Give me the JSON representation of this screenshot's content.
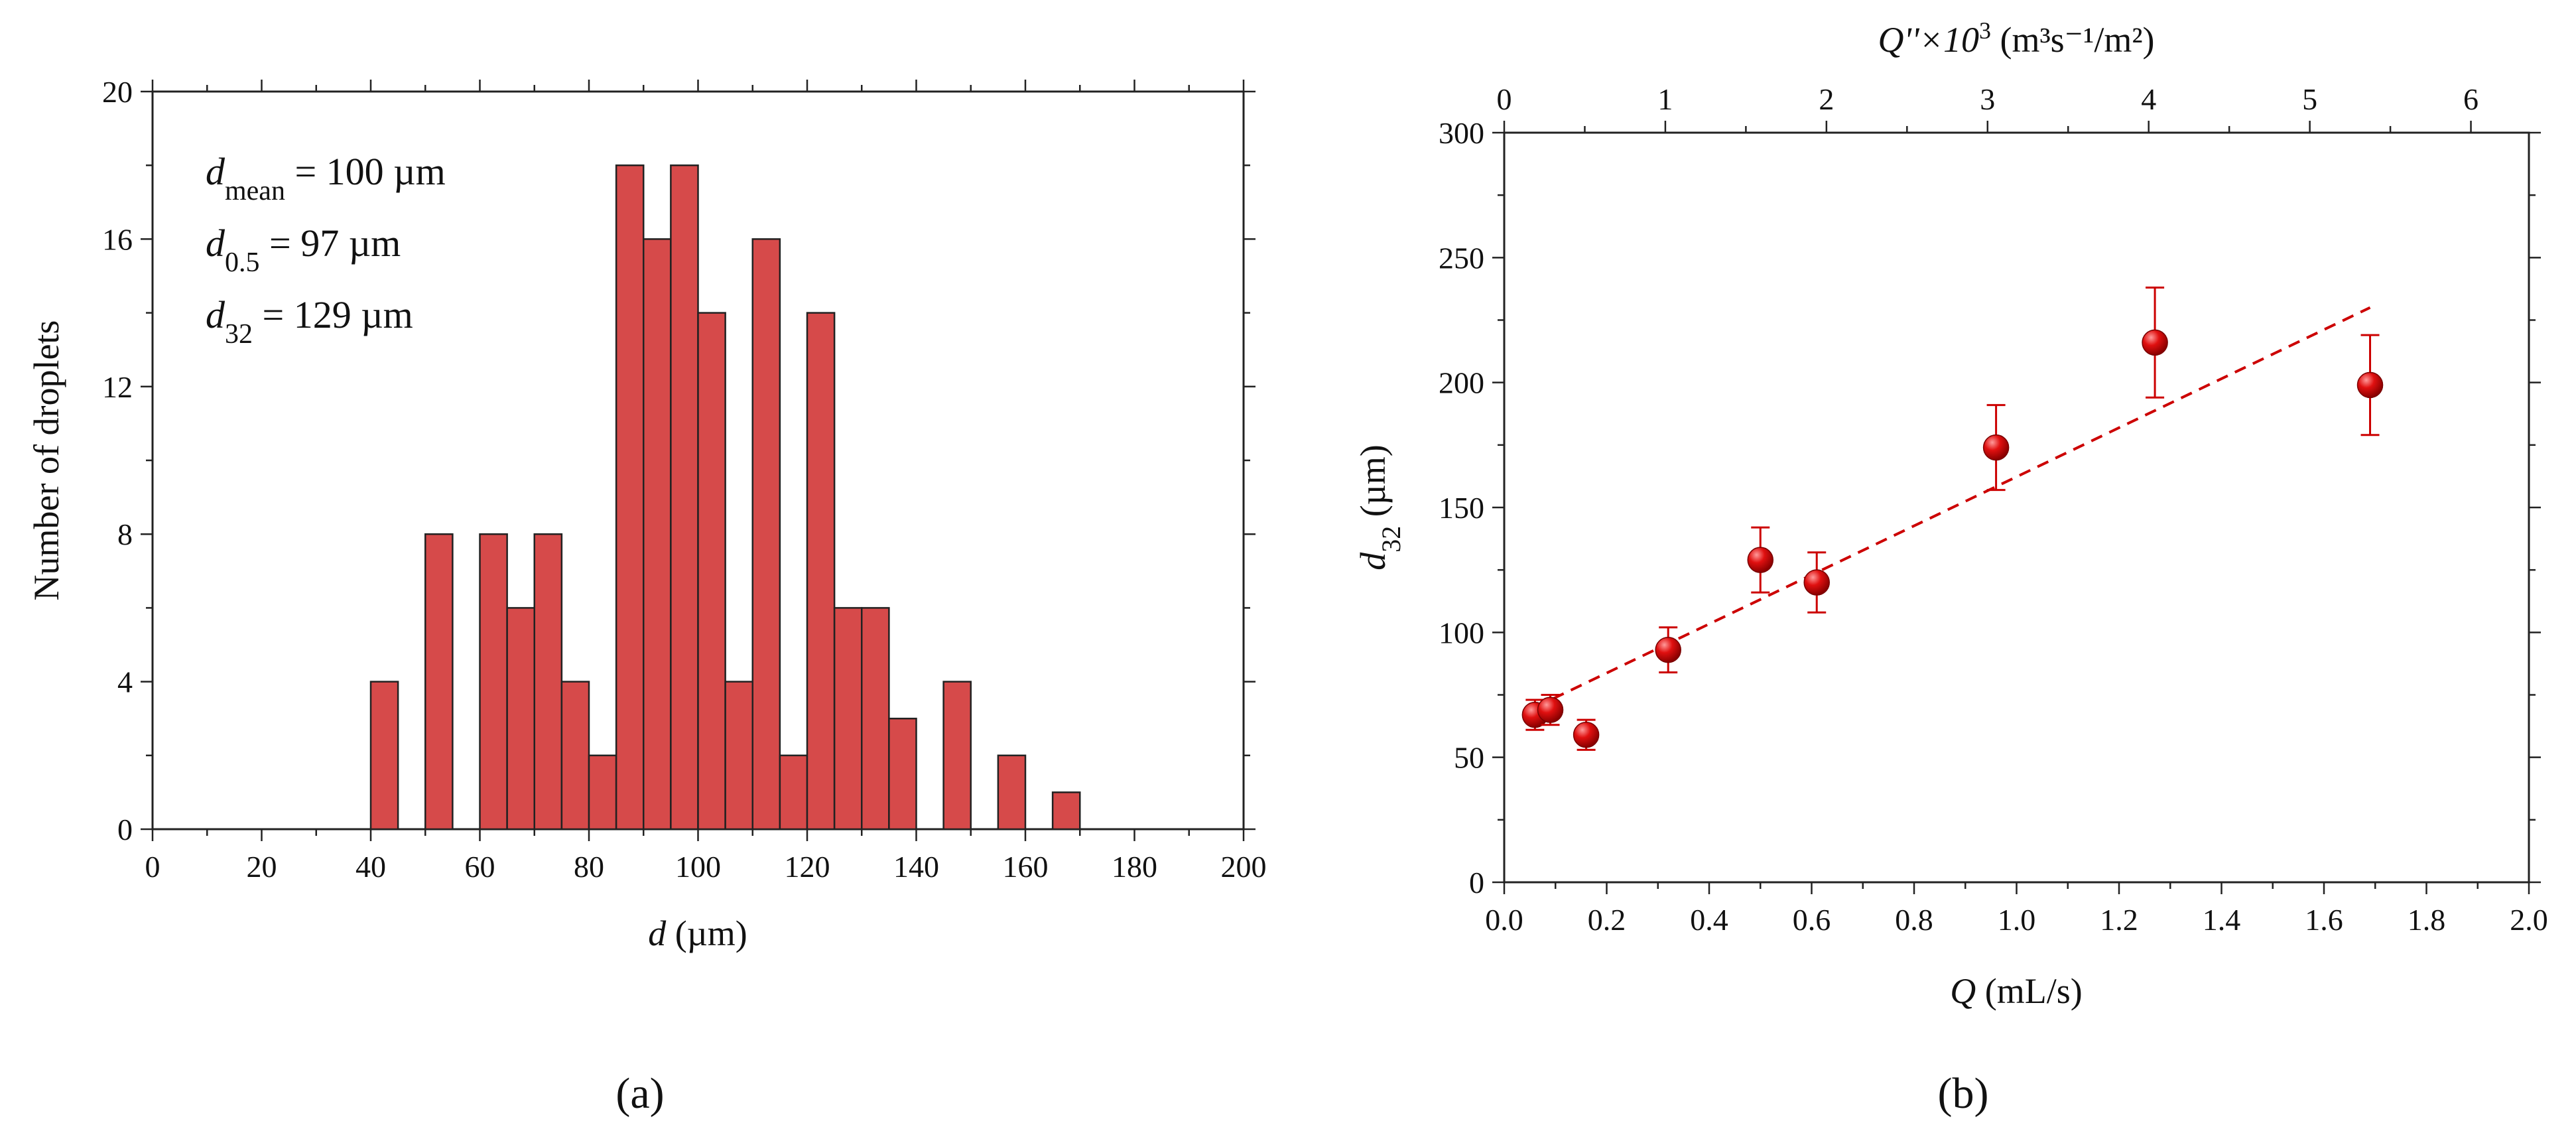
{
  "chart_data": [
    {
      "panel": "(a)",
      "type": "bar",
      "xlabel": "d (µm)",
      "xlabel_var": "d",
      "xlabel_unit": " (µm)",
      "ylabel": "Number of droplets",
      "xlim": [
        0,
        200
      ],
      "ylim": [
        0,
        20
      ],
      "xticks": [
        0,
        20,
        40,
        60,
        80,
        100,
        120,
        140,
        160,
        180,
        200
      ],
      "yticks": [
        0,
        4,
        8,
        12,
        16,
        20
      ],
      "bin_width": 5,
      "bin_starts": [
        40,
        50,
        60,
        65,
        70,
        75,
        80,
        85,
        90,
        95,
        100,
        105,
        110,
        115,
        120,
        125,
        130,
        135,
        145,
        155,
        165
      ],
      "values": [
        4,
        8,
        8,
        6,
        8,
        4,
        2,
        18,
        16,
        18,
        14,
        4,
        16,
        2,
        14,
        6,
        6,
        3,
        4,
        2,
        1
      ],
      "bar_color": "#d64a4a",
      "bar_edge_color": "#222222",
      "annotations": [
        {
          "var": "d",
          "sub": "mean",
          "rest": " = 100 µm"
        },
        {
          "var": "d",
          "sub": "0.5",
          "rest": " = 97 µm"
        },
        {
          "var": "d",
          "sub": "32",
          "rest": " = 129 µm"
        }
      ],
      "grid": false
    },
    {
      "panel": "(b)",
      "type": "scatter",
      "xlabel": "Q (mL/s)",
      "xlabel_var": "Q",
      "xlabel_unit": " (mL/s)",
      "ylabel": "d32 (µm)",
      "ylabel_var": "d",
      "ylabel_sub": "32",
      "ylabel_unit": " (µm)",
      "top_xlabel": "Q''×10³ (m³s⁻¹/m²)",
      "top_xlabel_var": "Q''×10",
      "top_xlabel_rest": " (m³s⁻¹/m²)",
      "xlim": [
        0,
        2.0
      ],
      "ylim": [
        0,
        300
      ],
      "xticks": [
        "0.0",
        "0.2",
        "0.4",
        "0.6",
        "0.8",
        "1.0",
        "1.2",
        "1.4",
        "1.6",
        "1.8",
        "2.0"
      ],
      "yticks": [
        0,
        50,
        100,
        150,
        200,
        250,
        300
      ],
      "top_xticks": [
        0,
        1,
        2,
        3,
        4,
        5,
        6
      ],
      "top_per_bottom": 3.18,
      "points": [
        {
          "x": 0.06,
          "y": 67,
          "err": 6
        },
        {
          "x": 0.09,
          "y": 69,
          "err": 6
        },
        {
          "x": 0.16,
          "y": 59,
          "err": 6
        },
        {
          "x": 0.32,
          "y": 93,
          "err": 9
        },
        {
          "x": 0.5,
          "y": 129,
          "err": 13
        },
        {
          "x": 0.61,
          "y": 120,
          "err": 12
        },
        {
          "x": 0.96,
          "y": 174,
          "err": 17
        },
        {
          "x": 1.27,
          "y": 216,
          "err": 22
        },
        {
          "x": 1.69,
          "y": 199,
          "err": 20
        }
      ],
      "fit_line": {
        "style": "dashed",
        "x": [
          0.06,
          1.69
        ],
        "y": [
          70,
          230
        ]
      },
      "marker_color": "#cc0000",
      "grid": false
    }
  ]
}
